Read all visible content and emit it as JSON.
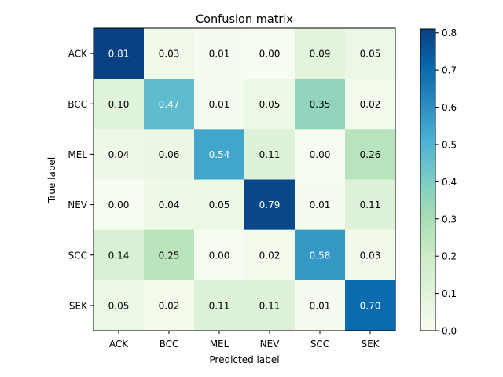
{
  "chart_data": {
    "type": "heatmap",
    "title": "Confusion matrix",
    "xlabel": "Predicted label",
    "ylabel": "True label",
    "x_categories": [
      "ACK",
      "BCC",
      "MEL",
      "NEV",
      "SCC",
      "SEK"
    ],
    "y_categories": [
      "ACK",
      "BCC",
      "MEL",
      "NEV",
      "SCC",
      "SEK"
    ],
    "values": [
      [
        0.81,
        0.03,
        0.01,
        0.0,
        0.09,
        0.05
      ],
      [
        0.1,
        0.47,
        0.01,
        0.05,
        0.35,
        0.02
      ],
      [
        0.04,
        0.06,
        0.54,
        0.11,
        0.0,
        0.26
      ],
      [
        0.0,
        0.04,
        0.05,
        0.79,
        0.01,
        0.11
      ],
      [
        0.14,
        0.25,
        0.0,
        0.02,
        0.58,
        0.03
      ],
      [
        0.05,
        0.02,
        0.11,
        0.11,
        0.01,
        0.7
      ]
    ],
    "cell_labels": [
      [
        "0.81",
        "0.03",
        "0.01",
        "0.00",
        "0.09",
        "0.05"
      ],
      [
        "0.10",
        "0.47",
        "0.01",
        "0.05",
        "0.35",
        "0.02"
      ],
      [
        "0.04",
        "0.06",
        "0.54",
        "0.11",
        "0.00",
        "0.26"
      ],
      [
        "0.00",
        "0.04",
        "0.05",
        "0.79",
        "0.01",
        "0.11"
      ],
      [
        "0.14",
        "0.25",
        "0.00",
        "0.02",
        "0.58",
        "0.03"
      ],
      [
        "0.05",
        "0.02",
        "0.11",
        "0.11",
        "0.01",
        "0.70"
      ]
    ],
    "colormap": "GnBu",
    "colormap_stops": [
      "#f7fcf0",
      "#e0f3db",
      "#ccebc5",
      "#a8ddb5",
      "#7bccc4",
      "#4eb3d3",
      "#2b8cbe",
      "#0868ac",
      "#084081"
    ],
    "color_range": [
      0,
      0.81
    ],
    "colorbar": {
      "ticks": [
        0.0,
        0.1,
        0.2,
        0.3,
        0.4,
        0.5,
        0.6,
        0.7,
        0.8
      ],
      "tick_labels": [
        "0.0",
        "0.1",
        "0.2",
        "0.3",
        "0.4",
        "0.5",
        "0.6",
        "0.7",
        "0.8"
      ]
    },
    "text_threshold": 0.405,
    "text_color_light": "#ffffff",
    "text_color_dark": "#000000"
  }
}
